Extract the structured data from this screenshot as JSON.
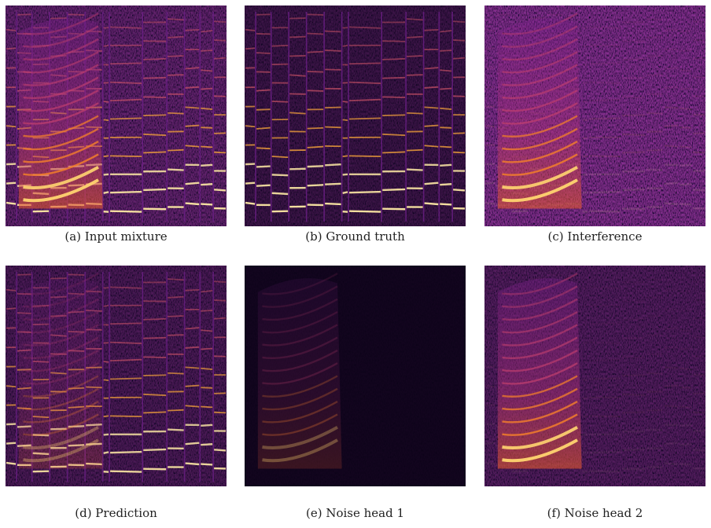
{
  "figure": {
    "panels": [
      {
        "caption": "(a) Input mixture"
      },
      {
        "caption": "(b) Ground truth"
      },
      {
        "caption": "(c) Interference"
      },
      {
        "caption": "(d) Prediction"
      },
      {
        "caption": "(e) Noise head 1"
      },
      {
        "caption": "(f) Noise head 2"
      }
    ]
  }
}
